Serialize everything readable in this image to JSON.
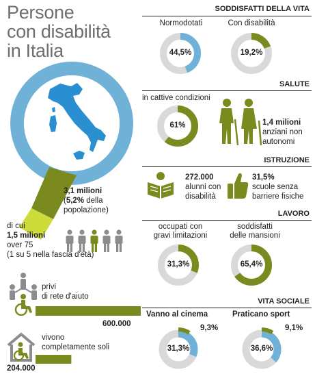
{
  "title": [
    "Persone",
    "con disabilità",
    "in Italia"
  ],
  "colors": {
    "blue": "#70b1d8",
    "olive": "#7b8a1f",
    "gray": "#d9d9d9",
    "lime": "#cddc3a",
    "dark": "#231f20"
  },
  "map": {
    "total": "3,1 milioni",
    "share_pre": "(",
    "share": "5,2%",
    "share_post": " della",
    "share_line2": "popolazione)",
    "dicui": "di cui",
    "over75_value": "1,5 milioni",
    "over75_label": "over 75",
    "ratio_note": "(1 su 5 nella fascia d'età)"
  },
  "aid": {
    "label1": "privi",
    "label2": "di rete d'aiuto",
    "value": "600.000"
  },
  "alone": {
    "label1": "vivono",
    "label2": "completamente soli",
    "value": "204.000"
  },
  "sections": {
    "soddisfatti": "SODDISFATTI DELLA VITA",
    "salute": "SALUTE",
    "istruzione": "ISTRUZIONE",
    "lavoro": "LAVORO",
    "sociale": "VITA SOCIALE"
  },
  "salute": {
    "label": "in cattive condizioni",
    "value_bold": "1,4 milioni",
    "line2": "anziani non",
    "line3": "autonomi"
  },
  "istruzione": {
    "a_value": "272.000",
    "a_line2": "alunni con",
    "a_line3": "disabilità",
    "b_value": "31,5%",
    "b_line2": "scuole senza",
    "b_line3": "barriere fisiche"
  },
  "lavoro": {
    "l1a": "occupati con",
    "l1b": "gravi limitazioni",
    "l2a": "soddisfatti",
    "l2b": "delle mansioni"
  },
  "sociale": {
    "cinema": "Vanno al cinema",
    "sport": "Praticano sport"
  },
  "chart_data": [
    {
      "type": "pie",
      "title": "Normodotati",
      "values": [
        44.5
      ],
      "labels": [
        "44,5%"
      ]
    },
    {
      "type": "pie",
      "title": "Con disabilità",
      "values": [
        19.2
      ],
      "labels": [
        "19,2%"
      ]
    },
    {
      "type": "pie",
      "title": "in cattive condizioni",
      "values": [
        61
      ],
      "labels": [
        "61%"
      ]
    },
    {
      "type": "pie",
      "title": "occupati con gravi limitazioni",
      "values": [
        31.3
      ],
      "labels": [
        "31,3%"
      ]
    },
    {
      "type": "pie",
      "title": "soddisfatti delle mansioni",
      "values": [
        65.4
      ],
      "labels": [
        "65,4%"
      ]
    },
    {
      "type": "pie",
      "title": "Vanno al cinema",
      "values": [
        31.3,
        9.3
      ],
      "labels": [
        "31,3%",
        "9,3%"
      ]
    },
    {
      "type": "pie",
      "title": "Praticano sport",
      "values": [
        36.6,
        9.1
      ],
      "labels": [
        "36,6%",
        "9,1%"
      ]
    },
    {
      "type": "bar",
      "categories": [
        "privi di rete d'aiuto",
        "vivono completamente soli"
      ],
      "values": [
        600000,
        204000
      ],
      "labels": [
        "600.000",
        "204.000"
      ]
    },
    {
      "type": "table",
      "title": "1 su 5 nella fascia d'età",
      "values": [
        1,
        5
      ]
    }
  ]
}
